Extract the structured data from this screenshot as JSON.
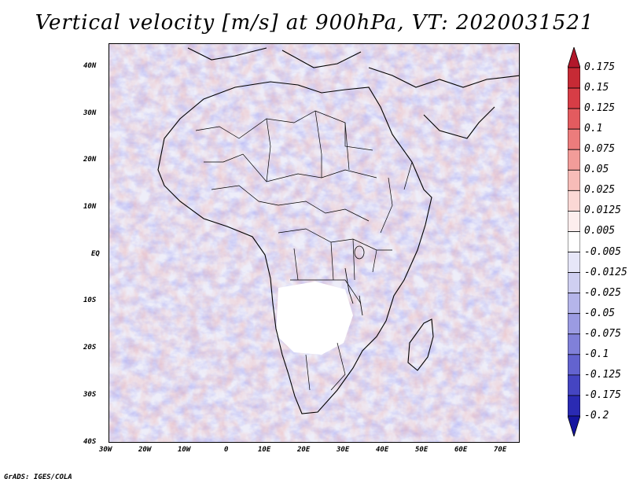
{
  "title": "Vertical velocity [m/s] at 900hPa, VT: 2020031521",
  "footer": "GrADS: IGES/COLA",
  "map": {
    "lat_labels": [
      "40N",
      "30N",
      "20N",
      "10N",
      "EQ",
      "10S",
      "20S",
      "30S",
      "40S"
    ],
    "lon_labels": [
      "30W",
      "20W",
      "10W",
      "0",
      "10E",
      "20E",
      "30E",
      "40E",
      "50E",
      "60E",
      "70E"
    ],
    "lat_range": [
      -40,
      44
    ],
    "lon_range": [
      -30,
      75
    ]
  },
  "colorbar": {
    "labels": [
      "0.175",
      "0.15",
      "0.125",
      "0.1",
      "0.075",
      "0.05",
      "0.025",
      "0.0125",
      "0.005",
      "-0.005",
      "-0.0125",
      "-0.025",
      "-0.05",
      "-0.075",
      "-0.1",
      "-0.125",
      "-0.175",
      "-0.2"
    ],
    "colors": [
      "#b2182b",
      "#c62a35",
      "#d73d46",
      "#e35b5f",
      "#ec7c7c",
      "#f29c99",
      "#f7bcb8",
      "#fbd8d5",
      "#fdeeee",
      "#ffffff",
      "#e6e6f8",
      "#cfcff1",
      "#b5b5ea",
      "#9b9be2",
      "#8080d9",
      "#6363cf",
      "#4545c2",
      "#2a2ab3",
      "#1515a0"
    ]
  }
}
